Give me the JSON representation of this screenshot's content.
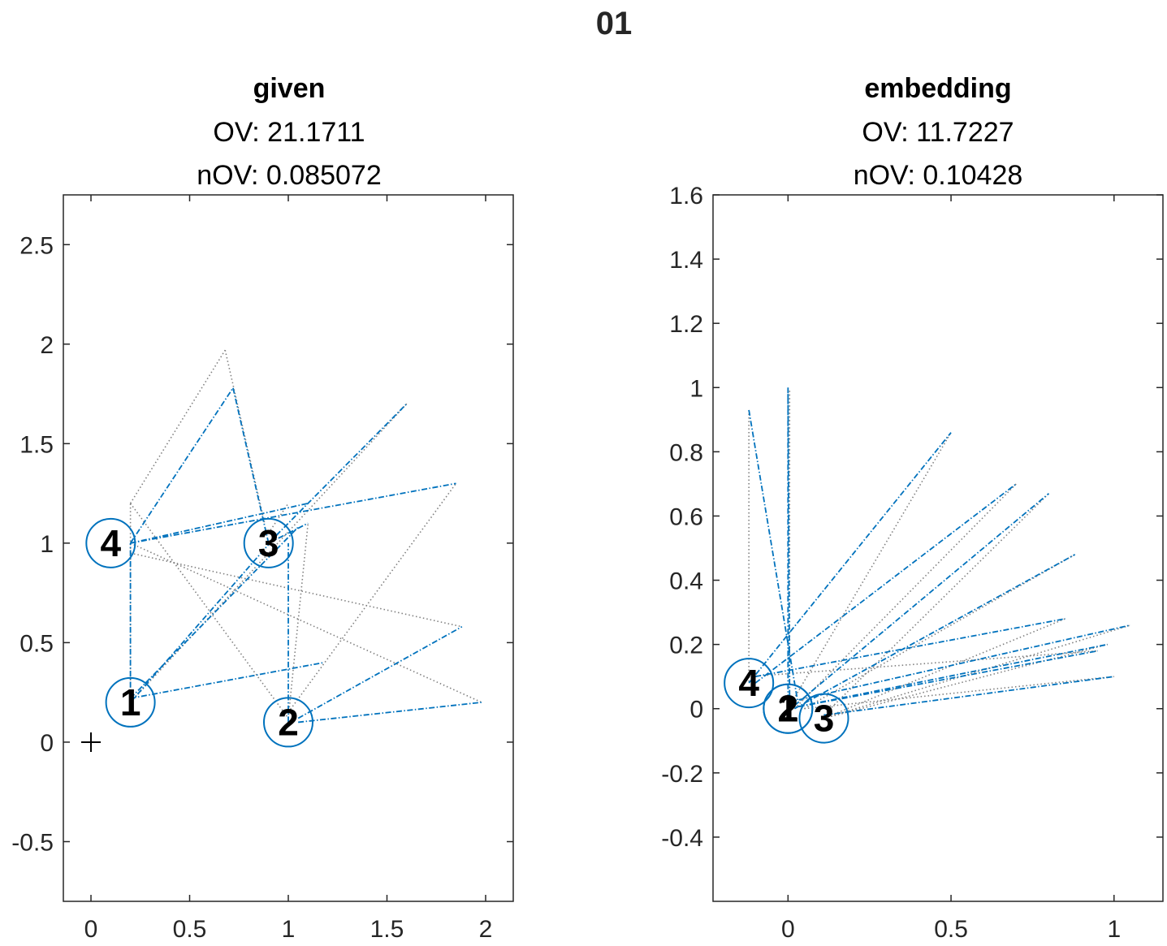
{
  "figure_title": "01",
  "colors": {
    "dash": "#0072BD",
    "dot": "#808080",
    "axis": "#262626",
    "node": "#0072BD",
    "text": "#000000"
  },
  "chart_data": [
    {
      "type": "scatter",
      "title": "given",
      "subtitles": [
        "OV: 21.1711",
        "nOV: 0.085072"
      ],
      "xlim": [
        -0.14,
        2.14
      ],
      "ylim": [
        -0.8,
        2.75
      ],
      "xticks": [
        0,
        0.5,
        1,
        1.5,
        2
      ],
      "xtick_labels": [
        "0",
        "0.5",
        "1",
        "1.5",
        "2"
      ],
      "yticks": [
        -0.5,
        0,
        0.5,
        1,
        1.5,
        2,
        2.5
      ],
      "ytick_labels": [
        "-0.5",
        "0",
        "0.5",
        "1",
        "1.5",
        "2",
        "2.5"
      ],
      "grid": false,
      "origin_marker": [
        0,
        0
      ],
      "nodes": [
        {
          "label": "1",
          "x": 0.2,
          "y": 0.2
        },
        {
          "label": "2",
          "x": 1.0,
          "y": 0.1
        },
        {
          "label": "3",
          "x": 0.9,
          "y": 1.0
        },
        {
          "label": "4",
          "x": 0.1,
          "y": 1.0
        }
      ],
      "dashed_edges": [
        [
          [
            0.2,
            0.22
          ],
          [
            0.2,
            1.0
          ]
        ],
        [
          [
            0.2,
            0.22
          ],
          [
            1.18,
            0.4
          ]
        ],
        [
          [
            0.2,
            0.2
          ],
          [
            0.95,
            1.05
          ]
        ],
        [
          [
            0.2,
            0.22
          ],
          [
            1.05,
            1.08
          ]
        ],
        [
          [
            0.2,
            1.0
          ],
          [
            1.1,
            1.2
          ]
        ],
        [
          [
            0.2,
            1.0
          ],
          [
            0.72,
            1.78
          ]
        ],
        [
          [
            0.2,
            1.0
          ],
          [
            1.85,
            1.3
          ]
        ],
        [
          [
            1.0,
            0.1
          ],
          [
            1.0,
            1.0
          ]
        ],
        [
          [
            1.05,
            0.12
          ],
          [
            1.88,
            0.58
          ]
        ],
        [
          [
            1.05,
            0.1
          ],
          [
            1.98,
            0.2
          ]
        ],
        [
          [
            0.9,
            1.0
          ],
          [
            1.6,
            1.7
          ]
        ],
        [
          [
            0.9,
            1.0
          ],
          [
            0.72,
            1.78
          ]
        ],
        [
          [
            0.9,
            1.0
          ],
          [
            1.1,
            1.1
          ]
        ]
      ],
      "dotted_edges": [
        [
          [
            0.2,
            0.2
          ],
          [
            0.2,
            1.2
          ]
        ],
        [
          [
            0.2,
            1.2
          ],
          [
            0.68,
            1.97
          ]
        ],
        [
          [
            0.68,
            1.97
          ],
          [
            0.88,
            1.1
          ]
        ],
        [
          [
            0.2,
            0.2
          ],
          [
            1.6,
            1.7
          ]
        ],
        [
          [
            0.2,
            1.2
          ],
          [
            1.0,
            0.12
          ]
        ],
        [
          [
            0.2,
            1.0
          ],
          [
            1.98,
            0.2
          ]
        ],
        [
          [
            0.2,
            0.95
          ],
          [
            1.88,
            0.58
          ]
        ],
        [
          [
            1.0,
            0.15
          ],
          [
            1.85,
            1.3
          ]
        ],
        [
          [
            1.0,
            0.12
          ],
          [
            1.1,
            1.1
          ]
        ],
        [
          [
            0.9,
            1.05
          ],
          [
            1.0,
            1.2
          ]
        ]
      ]
    },
    {
      "type": "scatter",
      "title": "embedding",
      "subtitles": [
        "OV: 11.7227",
        "nOV: 0.10428"
      ],
      "xlim": [
        -0.23,
        1.15
      ],
      "ylim": [
        -0.6,
        1.6
      ],
      "xticks": [
        0,
        0.5,
        1
      ],
      "xtick_labels": [
        "0",
        "0.5",
        "1"
      ],
      "yticks": [
        -0.4,
        -0.2,
        0,
        0.2,
        0.4,
        0.6,
        0.8,
        1,
        1.2,
        1.4,
        1.6
      ],
      "ytick_labels": [
        "-0.4",
        "-0.2",
        "0",
        "0.2",
        "0.4",
        "0.6",
        "0.8",
        "1",
        "1.2",
        "1.4",
        "1.6"
      ],
      "grid": false,
      "nodes": [
        {
          "label": "1",
          "x": 0.0,
          "y": 0.0
        },
        {
          "label": "2",
          "x": 0.0,
          "y": 0.0
        },
        {
          "label": "3",
          "x": 0.11,
          "y": -0.03
        },
        {
          "label": "4",
          "x": -0.12,
          "y": 0.08
        }
      ],
      "dashed_edges": [
        [
          [
            -0.12,
            0.93
          ],
          [
            0.03,
            0.02
          ]
        ],
        [
          [
            0.0,
            1.0
          ],
          [
            0.0,
            0.0
          ]
        ],
        [
          [
            0.0,
            0.98
          ],
          [
            0.005,
            0.0
          ]
        ],
        [
          [
            -0.12,
            0.08
          ],
          [
            0.5,
            0.86
          ]
        ],
        [
          [
            -0.1,
            0.08
          ],
          [
            0.7,
            0.7
          ]
        ],
        [
          [
            0.02,
            0.01
          ],
          [
            0.8,
            0.67
          ]
        ],
        [
          [
            0.02,
            0.0
          ],
          [
            0.88,
            0.48
          ]
        ],
        [
          [
            -0.1,
            0.1
          ],
          [
            0.85,
            0.28
          ]
        ],
        [
          [
            0.0,
            0.02
          ],
          [
            1.05,
            0.26
          ]
        ],
        [
          [
            0.0,
            0.0
          ],
          [
            0.98,
            0.2
          ]
        ],
        [
          [
            0.11,
            -0.02
          ],
          [
            1.0,
            0.1
          ]
        ],
        [
          [
            0.0,
            0.0
          ],
          [
            0.95,
            0.18
          ]
        ]
      ],
      "dotted_edges": [
        [
          [
            -0.12,
            0.93
          ],
          [
            -0.12,
            0.08
          ]
        ],
        [
          [
            0.005,
            0.99
          ],
          [
            0.005,
            0.0
          ]
        ],
        [
          [
            0.0,
            0.0
          ],
          [
            0.5,
            0.86
          ]
        ],
        [
          [
            0.02,
            0.0
          ],
          [
            0.7,
            0.7
          ]
        ],
        [
          [
            0.11,
            -0.02
          ],
          [
            0.8,
            0.67
          ]
        ],
        [
          [
            0.05,
            0.0
          ],
          [
            0.88,
            0.48
          ]
        ],
        [
          [
            0.11,
            -0.03
          ],
          [
            0.85,
            0.28
          ]
        ],
        [
          [
            0.11,
            -0.03
          ],
          [
            1.05,
            0.26
          ]
        ],
        [
          [
            0.11,
            -0.03
          ],
          [
            0.98,
            0.2
          ]
        ],
        [
          [
            0.05,
            0.0
          ],
          [
            1.0,
            0.1
          ]
        ],
        [
          [
            -0.12,
            0.1
          ],
          [
            0.95,
            0.18
          ]
        ]
      ]
    }
  ]
}
